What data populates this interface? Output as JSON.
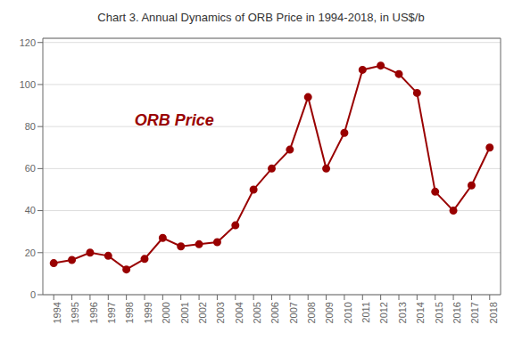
{
  "chart_data": {
    "type": "line",
    "title": "Chart 3. Annual Dynamics of ORB Price in 1994-2018, in US$/b",
    "x": [
      1994,
      1995,
      1996,
      1997,
      1998,
      1999,
      2000,
      2001,
      2002,
      2003,
      2004,
      2005,
      2006,
      2007,
      2008,
      2009,
      2010,
      2011,
      2012,
      2013,
      2014,
      2015,
      2016,
      2017,
      2018
    ],
    "values": [
      15,
      16.5,
      20,
      18.5,
      12,
      17,
      27,
      23,
      24,
      25,
      33,
      50,
      60,
      69,
      94,
      60,
      77,
      107,
      109,
      105,
      96,
      49,
      40,
      52,
      70
    ],
    "color": "#990000",
    "marker": "circle",
    "xlim": [
      1993.4,
      2018.6
    ],
    "xticks": [
      1994,
      1995,
      1996,
      1997,
      1998,
      1999,
      2000,
      2001,
      2002,
      2003,
      2004,
      2005,
      2006,
      2007,
      2008,
      2009,
      2010,
      2011,
      2012,
      2013,
      2014,
      2015,
      2016,
      2017,
      2018
    ],
    "ylim": [
      0,
      122
    ],
    "yticks": [
      0,
      20,
      40,
      60,
      80,
      100,
      120
    ],
    "grid": true,
    "annotations": [
      {
        "text": "ORB Price",
        "x": 1998.2,
        "y": 83
      }
    ]
  }
}
